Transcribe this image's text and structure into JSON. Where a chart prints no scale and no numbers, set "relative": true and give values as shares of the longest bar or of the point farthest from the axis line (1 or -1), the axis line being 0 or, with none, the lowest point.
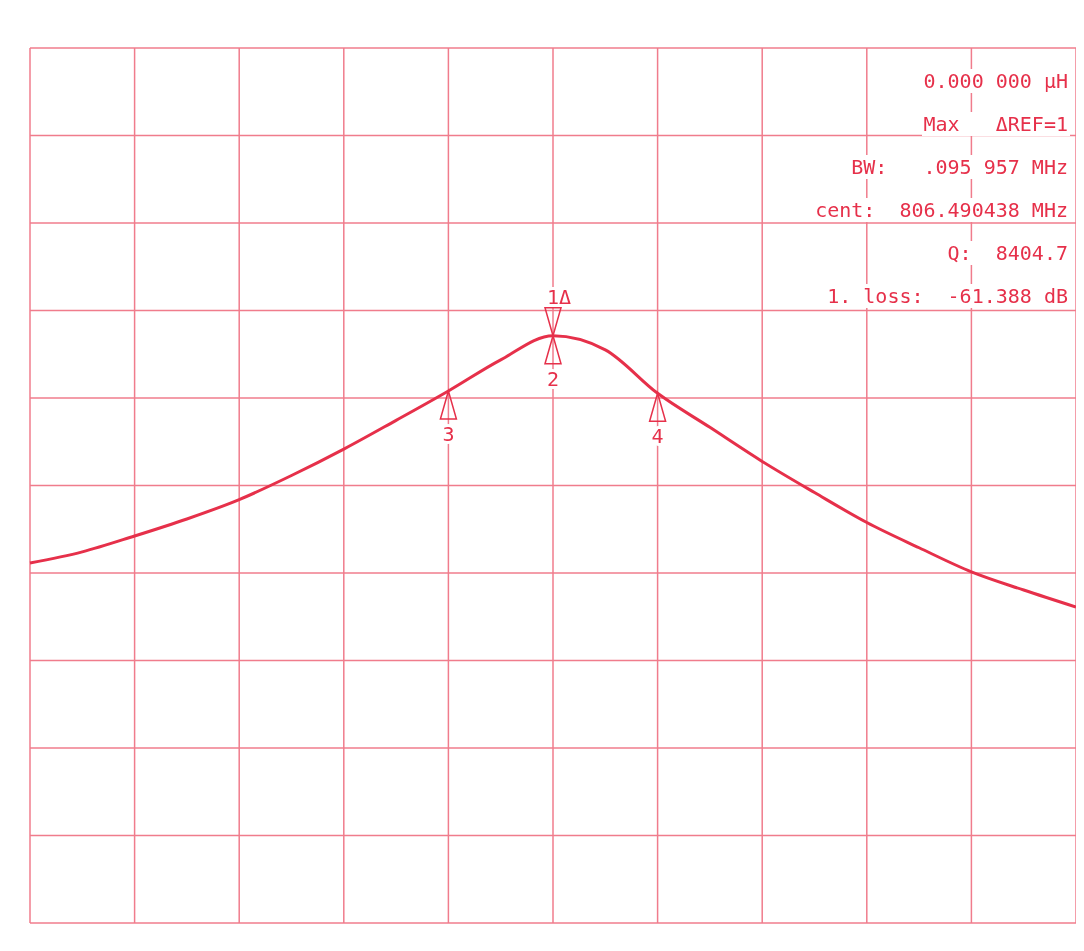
{
  "chart_data": {
    "type": "line",
    "relative": true,
    "grid": true,
    "marker": "none",
    "line_style": "solid",
    "categories": [
      null,
      null,
      null,
      null,
      null,
      null,
      null,
      null,
      null,
      null,
      null,
      null,
      null,
      null,
      null,
      null,
      null,
      null,
      null,
      null,
      null
    ],
    "series": [
      {
        "color": "#e6304a",
        "values": [
          0.613,
          0.632,
          0.659,
          0.688,
          0.721,
          0.762,
          0.807,
          0.856,
          0.906,
          0.959,
          1,
          0.976,
          0.902,
          0.844,
          0.786,
          0.733,
          0.682,
          0.639,
          0.598,
          0.567,
          0.538
        ]
      }
    ],
    "annotations": [
      "0.000 000 μH",
      "Max   ΔREF=1",
      "BW:   .095 957 MHz",
      "cent:  806.490438 MHz",
      "Q:  8404.7",
      "1. loss:  -61.388 dB",
      {
        "text": "1Δ",
        "y": 1
      },
      {
        "text": "2",
        "y": 1
      },
      {
        "text": "3",
        "y": 0.906
      },
      {
        "text": "4",
        "y": 0.902
      }
    ]
  }
}
